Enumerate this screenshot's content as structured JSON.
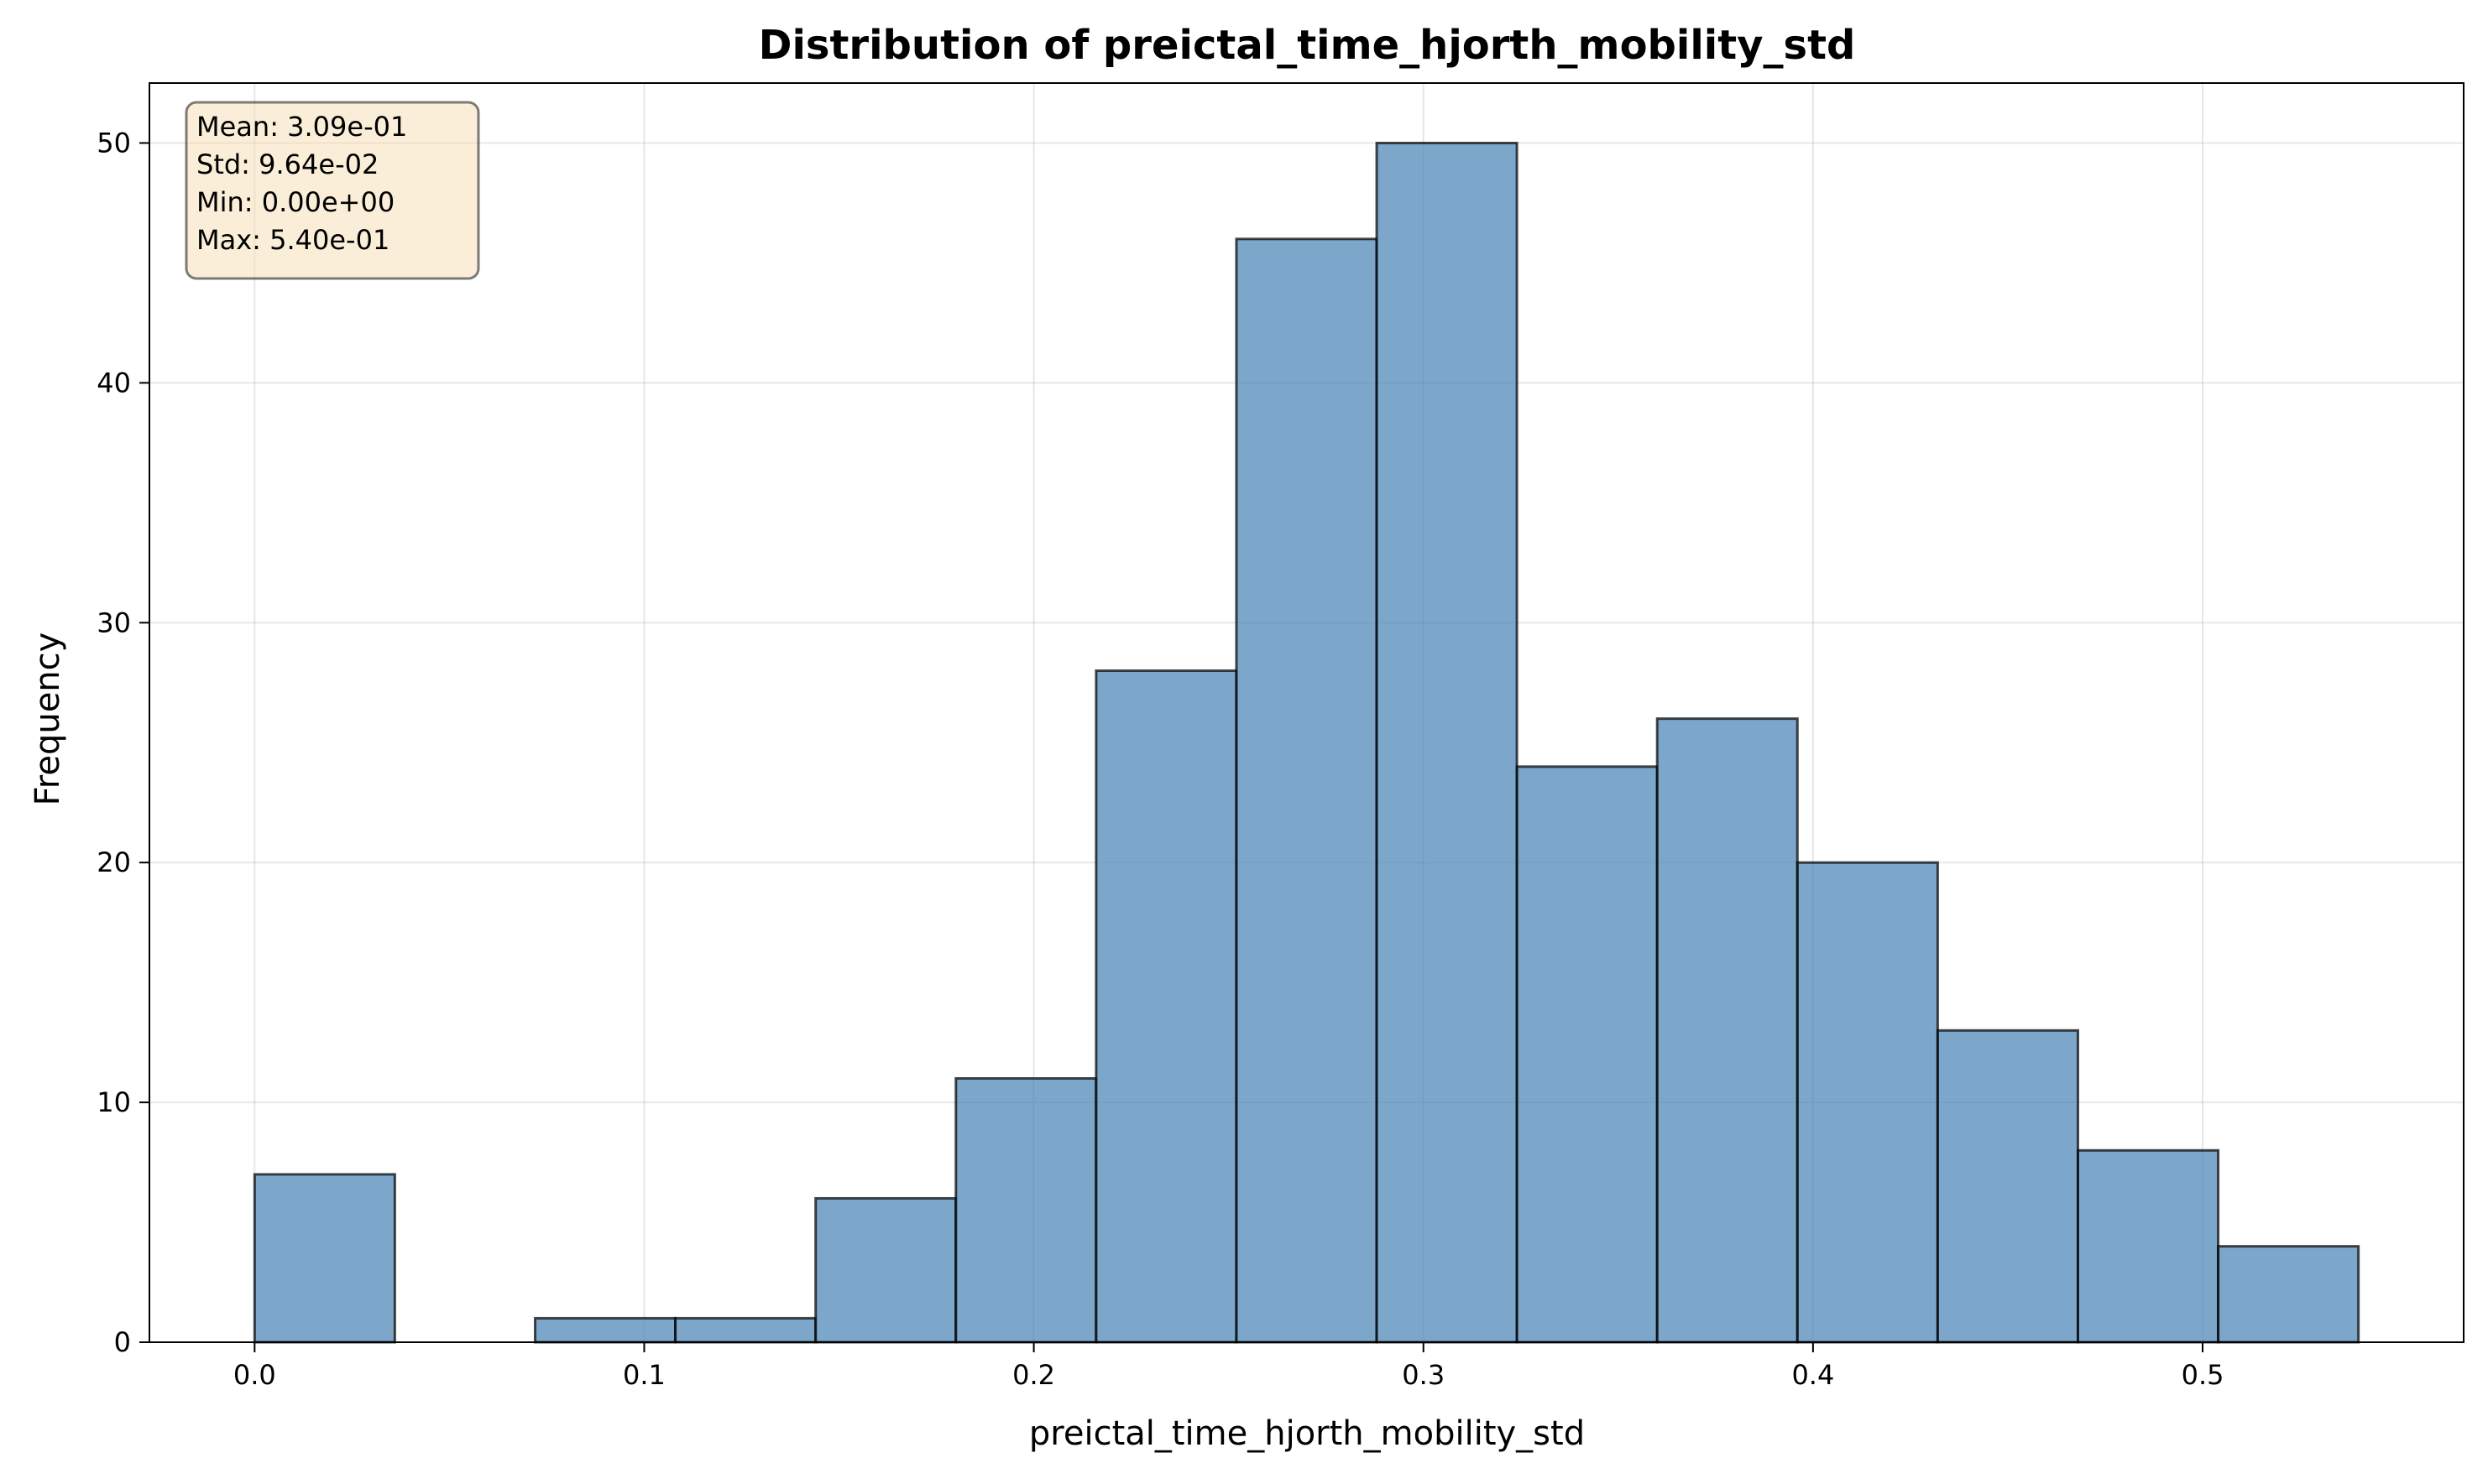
{
  "chart_data": {
    "type": "bar",
    "subtype": "histogram",
    "title": "Distribution of preictal_time_hjorth_mobility_std",
    "xlabel": "preictal_time_hjorth_mobility_std",
    "ylabel": "Frequency",
    "xlim": [
      -0.027,
      0.567
    ],
    "ylim": [
      0,
      52.5
    ],
    "xticks": [
      0.0,
      0.1,
      0.2,
      0.3,
      0.4,
      0.5
    ],
    "xtick_labels": [
      "0.0",
      "0.1",
      "0.2",
      "0.3",
      "0.4",
      "0.5"
    ],
    "yticks": [
      0,
      10,
      20,
      30,
      40,
      50
    ],
    "ytick_labels": [
      "0",
      "10",
      "20",
      "30",
      "40",
      "50"
    ],
    "bin_edges": [
      0.0,
      0.036,
      0.072,
      0.108,
      0.144,
      0.18,
      0.216,
      0.252,
      0.288,
      0.324,
      0.36,
      0.396,
      0.432,
      0.468,
      0.504,
      0.54
    ],
    "counts": [
      7,
      0,
      1,
      1,
      6,
      11,
      28,
      46,
      50,
      24,
      26,
      20,
      13,
      8,
      4
    ],
    "bar_color": "#4682b4",
    "grid": true,
    "stats_box": {
      "lines": [
        "Mean: 3.09e-01",
        "Std: 9.64e-02",
        "Min: 0.00e+00",
        "Max: 5.40e-01"
      ],
      "placement": "top-left",
      "background": "#f5deb3"
    }
  }
}
